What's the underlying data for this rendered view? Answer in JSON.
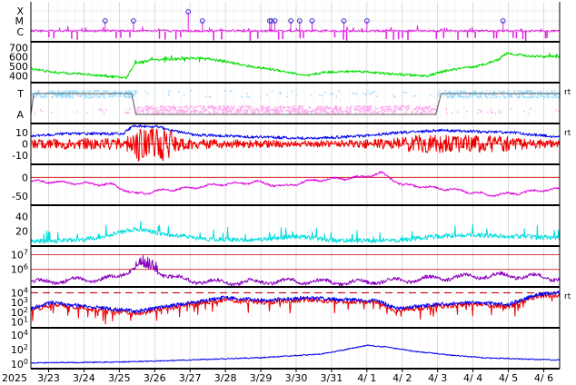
{
  "chart_data": {
    "type": "line",
    "time_axis": {
      "year_label": "2025",
      "date_labels": [
        "3/23",
        "3/24",
        "3/25",
        "3/26",
        "3/27",
        "3/28",
        "3/29",
        "3/30",
        "3/31",
        "4/ 1",
        "4/ 2",
        "4/ 3",
        "4/ 4",
        "4/ 5",
        "4/ 6"
      ],
      "range_days": [
        0,
        14.95
      ],
      "grid": true
    },
    "panels": [
      {
        "id": "flare",
        "tick_labels": [
          "X",
          "M",
          "C"
        ],
        "series": [
          {
            "color": "#e020e0",
            "style": "line"
          }
        ],
        "events_marked": [
          4.45,
          5.05,
          7.95,
          8.3,
          9.0,
          9.05,
          9.15,
          9.6,
          9.85,
          10.2,
          11.1,
          11.75,
          16.0
        ],
        "event_days": [
          2.1,
          2.9,
          4.45,
          4.85,
          6.75,
          6.8,
          6.9,
          7.35,
          7.6,
          7.95,
          8.85,
          9.5,
          13.35
        ],
        "right_label": ""
      },
      {
        "id": "wind_speed",
        "tick_labels": [
          "700",
          "600",
          "500",
          "400"
        ],
        "ylim": [
          330,
          760
        ],
        "series": [
          {
            "color": "#00dd00",
            "style": "line"
          }
        ],
        "right_label": "",
        "anchors": [
          [
            0,
            480
          ],
          [
            0.6,
            440
          ],
          [
            1.5,
            420
          ],
          [
            2.7,
            380
          ],
          [
            2.95,
            540
          ],
          [
            3.5,
            570
          ],
          [
            4.8,
            590
          ],
          [
            5.4,
            560
          ],
          [
            6.2,
            500
          ],
          [
            7.0,
            460
          ],
          [
            7.8,
            400
          ],
          [
            8.3,
            440
          ],
          [
            9.3,
            450
          ],
          [
            10.2,
            420
          ],
          [
            11.2,
            400
          ],
          [
            11.8,
            460
          ],
          [
            12.6,
            500
          ],
          [
            13.2,
            570
          ],
          [
            13.45,
            640
          ],
          [
            14.1,
            610
          ],
          [
            14.95,
            600
          ]
        ]
      },
      {
        "id": "imf_direction",
        "tick_labels": [
          "T",
          "A"
        ],
        "series": [
          {
            "color": "#99ddff",
            "style": "dots"
          },
          {
            "color": "#ffaaee",
            "style": "dots"
          },
          {
            "color": "#555555",
            "style": "line"
          }
        ],
        "right_label": "rt",
        "sector_steps": [
          [
            0,
            "A"
          ],
          [
            0.08,
            "T"
          ],
          [
            2.85,
            "T"
          ],
          [
            2.97,
            "A"
          ],
          [
            11.45,
            "A"
          ],
          [
            11.6,
            "T"
          ],
          [
            14.95,
            "T"
          ]
        ]
      },
      {
        "id": "imf_components",
        "tick_labels": [
          "10",
          "0",
          "-10"
        ],
        "ylim": [
          -18,
          18
        ],
        "series": [
          {
            "color": "#0000ee",
            "style": "line"
          },
          {
            "color": "#ee0000",
            "style": "line"
          }
        ],
        "right_label": "rt",
        "bt_anchors": [
          [
            0,
            7
          ],
          [
            1.0,
            9
          ],
          [
            2.6,
            9
          ],
          [
            2.9,
            16
          ],
          [
            3.6,
            15
          ],
          [
            4.6,
            8
          ],
          [
            6.5,
            6
          ],
          [
            8.0,
            5
          ],
          [
            9.4,
            7
          ],
          [
            10.4,
            10
          ],
          [
            11.6,
            12
          ],
          [
            12.5,
            11
          ],
          [
            13.6,
            10
          ],
          [
            14.95,
            6
          ]
        ]
      },
      {
        "id": "dst",
        "tick_labels": [
          "0",
          "-50"
        ],
        "ylim": [
          -75,
          35
        ],
        "reference_lines": [
          0
        ],
        "series": [
          {
            "color": "#dd00dd",
            "style": "line"
          }
        ],
        "right_label": "",
        "anchors": [
          [
            0,
            -10
          ],
          [
            1.2,
            -15
          ],
          [
            2.3,
            -20
          ],
          [
            2.95,
            -45
          ],
          [
            3.7,
            -35
          ],
          [
            4.4,
            -30
          ],
          [
            5.2,
            -20
          ],
          [
            6.4,
            -12
          ],
          [
            7.1,
            -25
          ],
          [
            8.0,
            -8
          ],
          [
            9.3,
            0
          ],
          [
            9.9,
            12
          ],
          [
            10.5,
            -20
          ],
          [
            11.4,
            -28
          ],
          [
            12.2,
            -36
          ],
          [
            13.0,
            -48
          ],
          [
            13.8,
            -42
          ],
          [
            14.95,
            -30
          ]
        ]
      },
      {
        "id": "kp_like",
        "tick_labels": [
          "40",
          "20"
        ],
        "ylim": [
          0,
          55
        ],
        "series": [
          {
            "color": "#00dddd",
            "style": "line"
          }
        ],
        "right_label": "",
        "anchors": [
          [
            0,
            5
          ],
          [
            1.5,
            7
          ],
          [
            3.0,
            22
          ],
          [
            3.7,
            15
          ],
          [
            5.0,
            8
          ],
          [
            6.4,
            7
          ],
          [
            7.5,
            12
          ],
          [
            8.6,
            6
          ],
          [
            10.3,
            6
          ],
          [
            11.5,
            12
          ],
          [
            12.5,
            14
          ],
          [
            13.5,
            12
          ],
          [
            14.95,
            10
          ]
        ]
      },
      {
        "id": "electron_flux",
        "tick_labels": [
          "10^7",
          "10^6"
        ],
        "ylim_log": [
          4.8,
          7.6
        ],
        "reference_lines_log": [
          7,
          6
        ],
        "series": [
          {
            "color": "#8800bb",
            "style": "line"
          }
        ],
        "right_label": "",
        "anchors": [
          [
            0,
            5.1
          ],
          [
            1.2,
            5.25
          ],
          [
            2.4,
            5.4
          ],
          [
            3.0,
            6.3
          ],
          [
            3.6,
            5.8
          ],
          [
            4.4,
            5.25
          ],
          [
            5.5,
            5.1
          ],
          [
            7.5,
            5.2
          ],
          [
            9.0,
            5.1
          ],
          [
            10.5,
            5.25
          ],
          [
            11.8,
            5.45
          ],
          [
            13.2,
            5.6
          ],
          [
            14.2,
            5.5
          ],
          [
            14.95,
            5.4
          ]
        ]
      },
      {
        "id": "proton_flux",
        "tick_labels": [
          "10^4",
          "10^3",
          "10^2",
          "10^1"
        ],
        "ylim_log": [
          0.4,
          4.6
        ],
        "reference_lines_log": [
          4
        ],
        "series": [
          {
            "color": "#0000ee",
            "style": "line"
          },
          {
            "color": "#ee0000",
            "style": "line"
          }
        ],
        "right_label": "rt",
        "anchors": [
          [
            0,
            2.2
          ],
          [
            0.6,
            2.8
          ],
          [
            1.5,
            2.4
          ],
          [
            3.0,
            1.9
          ],
          [
            4.2,
            2.6
          ],
          [
            5.5,
            3.3
          ],
          [
            6.6,
            3.0
          ],
          [
            7.8,
            3.3
          ],
          [
            8.8,
            3.1
          ],
          [
            9.8,
            3.0
          ],
          [
            10.3,
            2.2
          ],
          [
            11.5,
            2.6
          ],
          [
            12.5,
            2.8
          ],
          [
            13.5,
            2.6
          ],
          [
            14.3,
            3.6
          ],
          [
            14.95,
            3.8
          ]
        ]
      },
      {
        "id": "bottom_flux",
        "tick_labels": [
          "10^4",
          "10^2",
          "10^0"
        ],
        "ylim_log": [
          -0.6,
          5.0
        ],
        "series": [
          {
            "color": "#0000ee",
            "style": "line"
          }
        ],
        "right_label": "",
        "anchors": [
          [
            0,
            0.2
          ],
          [
            2.5,
            0.3
          ],
          [
            4.5,
            0.6
          ],
          [
            6.5,
            0.9
          ],
          [
            8.2,
            1.4
          ],
          [
            9.0,
            2.1
          ],
          [
            9.5,
            2.6
          ],
          [
            10.0,
            2.4
          ],
          [
            10.8,
            1.8
          ],
          [
            11.8,
            1.3
          ],
          [
            12.8,
            0.9
          ],
          [
            14.0,
            0.7
          ],
          [
            14.95,
            0.6
          ]
        ]
      }
    ]
  }
}
